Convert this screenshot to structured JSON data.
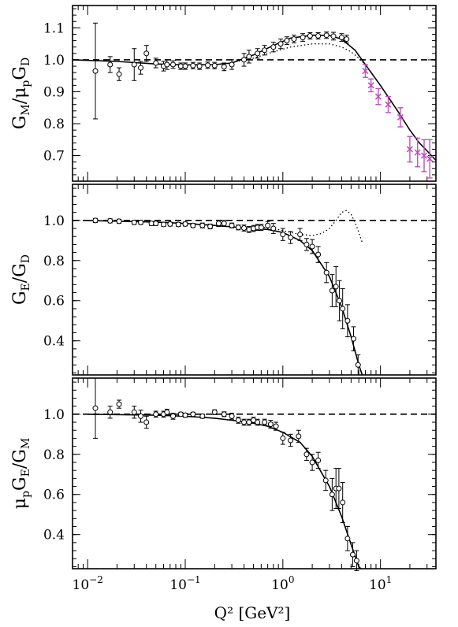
{
  "chart_data": [
    {
      "type": "scatter",
      "panel": "top",
      "ylabel": "G_M/μ_pG_D",
      "ylim": [
        0.62,
        1.17
      ],
      "xlim": [
        0.007,
        37
      ],
      "xscale": "log",
      "yticks": [
        0.7,
        0.8,
        0.9,
        1.0,
        1.1
      ],
      "ytick_labels": [
        "0.7",
        "0.8",
        "0.9",
        "1.0",
        "1.1"
      ],
      "reference_line": 1.0,
      "fit_curve": [
        [
          0.007,
          1.0
        ],
        [
          0.02,
          0.995
        ],
        [
          0.05,
          0.987
        ],
        [
          0.1,
          0.984
        ],
        [
          0.2,
          0.985
        ],
        [
          0.3,
          0.99
        ],
        [
          0.5,
          1.015
        ],
        [
          0.8,
          1.045
        ],
        [
          1.2,
          1.068
        ],
        [
          2.0,
          1.077
        ],
        [
          3.0,
          1.076
        ],
        [
          4.0,
          1.065
        ],
        [
          5.5,
          1.03
        ],
        [
          7.0,
          0.985
        ],
        [
          10.0,
          0.92
        ],
        [
          15.0,
          0.84
        ],
        [
          20.0,
          0.78
        ],
        [
          25.0,
          0.74
        ],
        [
          30.0,
          0.715
        ],
        [
          37.0,
          0.685
        ]
      ],
      "dotted_curve": [
        [
          0.3,
          0.992
        ],
        [
          0.5,
          1.005
        ],
        [
          0.8,
          1.025
        ],
        [
          1.2,
          1.04
        ],
        [
          2.0,
          1.05
        ],
        [
          3.0,
          1.05
        ],
        [
          4.0,
          1.04
        ],
        [
          5.0,
          1.025
        ],
        [
          6.0,
          1.005
        ],
        [
          7.0,
          0.985
        ]
      ],
      "points": [
        {
          "x": 0.012,
          "y": 0.965,
          "err": 0.15
        },
        {
          "x": 0.017,
          "y": 0.985,
          "err": 0.025
        },
        {
          "x": 0.021,
          "y": 0.955,
          "err": 0.02
        },
        {
          "x": 0.03,
          "y": 0.985,
          "err": 0.05
        },
        {
          "x": 0.035,
          "y": 0.975,
          "err": 0.02
        },
        {
          "x": 0.04,
          "y": 1.02,
          "err": 0.025
        },
        {
          "x": 0.05,
          "y": 0.99,
          "err": 0.015
        },
        {
          "x": 0.06,
          "y": 0.98,
          "err": 0.015
        },
        {
          "x": 0.065,
          "y": 0.985,
          "err": 0.015
        },
        {
          "x": 0.075,
          "y": 0.985,
          "err": 0.012
        },
        {
          "x": 0.09,
          "y": 0.98,
          "err": 0.01
        },
        {
          "x": 0.1,
          "y": 0.98,
          "err": 0.01
        },
        {
          "x": 0.12,
          "y": 0.982,
          "err": 0.01
        },
        {
          "x": 0.14,
          "y": 0.98,
          "err": 0.01
        },
        {
          "x": 0.17,
          "y": 0.983,
          "err": 0.01
        },
        {
          "x": 0.2,
          "y": 0.982,
          "err": 0.01
        },
        {
          "x": 0.25,
          "y": 0.978,
          "err": 0.012
        },
        {
          "x": 0.3,
          "y": 0.985,
          "err": 0.015
        },
        {
          "x": 0.4,
          "y": 1.0,
          "err": 0.02
        },
        {
          "x": 0.45,
          "y": 1.01,
          "err": 0.02
        },
        {
          "x": 0.55,
          "y": 1.02,
          "err": 0.015
        },
        {
          "x": 0.65,
          "y": 1.03,
          "err": 0.015
        },
        {
          "x": 0.8,
          "y": 1.04,
          "err": 0.015
        },
        {
          "x": 0.95,
          "y": 1.05,
          "err": 0.015
        },
        {
          "x": 1.1,
          "y": 1.06,
          "err": 0.012
        },
        {
          "x": 1.3,
          "y": 1.065,
          "err": 0.012
        },
        {
          "x": 1.6,
          "y": 1.07,
          "err": 0.012
        },
        {
          "x": 1.9,
          "y": 1.075,
          "err": 0.01
        },
        {
          "x": 2.3,
          "y": 1.075,
          "err": 0.01
        },
        {
          "x": 2.8,
          "y": 1.077,
          "err": 0.01
        },
        {
          "x": 3.3,
          "y": 1.074,
          "err": 0.012
        },
        {
          "x": 4.0,
          "y": 1.07,
          "err": 0.012
        },
        {
          "x": 4.5,
          "y": 1.065,
          "err": 0.012
        }
      ],
      "points_highlight": [
        {
          "x": 7.0,
          "y": 0.965,
          "err": 0.02
        },
        {
          "x": 8.0,
          "y": 0.92,
          "err": 0.02
        },
        {
          "x": 9.5,
          "y": 0.885,
          "err": 0.025
        },
        {
          "x": 12.0,
          "y": 0.86,
          "err": 0.025
        },
        {
          "x": 16.0,
          "y": 0.82,
          "err": 0.03
        },
        {
          "x": 20.0,
          "y": 0.72,
          "err": 0.04
        },
        {
          "x": 24.0,
          "y": 0.71,
          "err": 0.045
        },
        {
          "x": 28.0,
          "y": 0.7,
          "err": 0.05
        },
        {
          "x": 32.0,
          "y": 0.69,
          "err": 0.06
        }
      ]
    },
    {
      "type": "scatter",
      "panel": "middle",
      "ylabel": "G_E/G_D",
      "ylim": [
        0.23,
        1.18
      ],
      "xlim": [
        0.007,
        37
      ],
      "xscale": "log",
      "yticks": [
        0.4,
        0.6,
        0.8,
        1.0
      ],
      "ytick_labels": [
        "0.4",
        "0.6",
        "0.8",
        "1.0"
      ],
      "reference_line": 1.0,
      "fit_curve": [
        [
          0.01,
          1.0
        ],
        [
          0.05,
          0.992
        ],
        [
          0.1,
          0.985
        ],
        [
          0.2,
          0.975
        ],
        [
          0.3,
          0.968
        ],
        [
          0.5,
          0.96
        ],
        [
          0.7,
          0.955
        ],
        [
          1.0,
          0.94
        ],
        [
          1.5,
          0.9
        ],
        [
          2.0,
          0.85
        ],
        [
          3.0,
          0.72
        ],
        [
          4.0,
          0.57
        ],
        [
          5.0,
          0.42
        ],
        [
          6.0,
          0.28
        ],
        [
          6.5,
          0.23
        ]
      ],
      "dotted_curve": [
        [
          0.5,
          0.97
        ],
        [
          0.8,
          0.96
        ],
        [
          1.2,
          0.94
        ],
        [
          1.5,
          0.93
        ],
        [
          2.0,
          0.925
        ],
        [
          2.5,
          0.935
        ],
        [
          3.0,
          0.96
        ],
        [
          3.5,
          1.0
        ],
        [
          4.0,
          1.04
        ],
        [
          4.5,
          1.05
        ],
        [
          5.0,
          1.03
        ],
        [
          5.5,
          0.99
        ],
        [
          6.0,
          0.94
        ],
        [
          6.5,
          0.89
        ]
      ],
      "points": [
        {
          "x": 0.012,
          "y": 1.0,
          "err": 0.01
        },
        {
          "x": 0.017,
          "y": 0.998,
          "err": 0.01
        },
        {
          "x": 0.021,
          "y": 0.996,
          "err": 0.01
        },
        {
          "x": 0.03,
          "y": 0.99,
          "err": 0.01
        },
        {
          "x": 0.035,
          "y": 0.99,
          "err": 0.01
        },
        {
          "x": 0.045,
          "y": 0.985,
          "err": 0.01
        },
        {
          "x": 0.05,
          "y": 0.985,
          "err": 0.01
        },
        {
          "x": 0.06,
          "y": 0.98,
          "err": 0.01
        },
        {
          "x": 0.07,
          "y": 0.982,
          "err": 0.01
        },
        {
          "x": 0.085,
          "y": 0.98,
          "err": 0.01
        },
        {
          "x": 0.1,
          "y": 0.982,
          "err": 0.01
        },
        {
          "x": 0.12,
          "y": 0.975,
          "err": 0.01
        },
        {
          "x": 0.15,
          "y": 0.975,
          "err": 0.012
        },
        {
          "x": 0.18,
          "y": 0.97,
          "err": 0.012
        },
        {
          "x": 0.22,
          "y": 0.985,
          "err": 0.015
        },
        {
          "x": 0.25,
          "y": 0.985,
          "err": 0.015
        },
        {
          "x": 0.3,
          "y": 0.975,
          "err": 0.012
        },
        {
          "x": 0.35,
          "y": 0.965,
          "err": 0.012
        },
        {
          "x": 0.4,
          "y": 0.962,
          "err": 0.015
        },
        {
          "x": 0.45,
          "y": 0.955,
          "err": 0.015
        },
        {
          "x": 0.5,
          "y": 0.96,
          "err": 0.015
        },
        {
          "x": 0.55,
          "y": 0.965,
          "err": 0.015
        },
        {
          "x": 0.6,
          "y": 0.965,
          "err": 0.015
        },
        {
          "x": 0.7,
          "y": 0.975,
          "err": 0.02
        },
        {
          "x": 0.8,
          "y": 0.96,
          "err": 0.025
        },
        {
          "x": 1.0,
          "y": 0.93,
          "err": 0.03
        },
        {
          "x": 1.2,
          "y": 0.915,
          "err": 0.03
        },
        {
          "x": 1.5,
          "y": 0.93,
          "err": 0.03
        },
        {
          "x": 1.75,
          "y": 0.88,
          "err": 0.03
        },
        {
          "x": 2.0,
          "y": 0.87,
          "err": 0.035
        },
        {
          "x": 2.3,
          "y": 0.83,
          "err": 0.04
        },
        {
          "x": 2.8,
          "y": 0.74,
          "err": 0.05
        },
        {
          "x": 3.2,
          "y": 0.65,
          "err": 0.08
        },
        {
          "x": 3.5,
          "y": 0.67,
          "err": 0.1
        },
        {
          "x": 3.8,
          "y": 0.6,
          "err": 0.1
        },
        {
          "x": 4.1,
          "y": 0.56,
          "err": 0.1
        },
        {
          "x": 4.6,
          "y": 0.5,
          "err": 0.08
        },
        {
          "x": 5.3,
          "y": 0.41,
          "err": 0.06
        },
        {
          "x": 5.9,
          "y": 0.28,
          "err": 0.05
        }
      ]
    },
    {
      "type": "scatter",
      "panel": "bottom",
      "ylabel": "μ_pG_E/G_M",
      "ylim": [
        0.23,
        1.18
      ],
      "xlim": [
        0.007,
        37
      ],
      "xscale": "log",
      "xlabel": "Q² [GeV²]",
      "xticks": [
        0.01,
        0.1,
        1,
        10
      ],
      "xtick_labels": [
        [
          "10",
          "−2"
        ],
        [
          "10",
          "−1"
        ],
        [
          "10",
          "0"
        ],
        [
          "10",
          "1"
        ]
      ],
      "yticks": [
        0.4,
        0.6,
        0.8,
        1.0
      ],
      "ytick_labels": [
        "0.4",
        "0.6",
        "0.8",
        "1.0"
      ],
      "reference_line": 1.0,
      "fit_curve": [
        [
          0.01,
          1.0
        ],
        [
          0.05,
          0.995
        ],
        [
          0.1,
          0.99
        ],
        [
          0.2,
          0.98
        ],
        [
          0.3,
          0.97
        ],
        [
          0.5,
          0.955
        ],
        [
          0.7,
          0.94
        ],
        [
          1.0,
          0.91
        ],
        [
          1.5,
          0.86
        ],
        [
          2.0,
          0.79
        ],
        [
          3.0,
          0.64
        ],
        [
          4.0,
          0.49
        ],
        [
          5.0,
          0.35
        ],
        [
          6.0,
          0.24
        ],
        [
          6.3,
          0.23
        ]
      ],
      "points": [
        {
          "x": 0.012,
          "y": 1.03,
          "err": 0.15
        },
        {
          "x": 0.017,
          "y": 1.01,
          "err": 0.03
        },
        {
          "x": 0.021,
          "y": 1.05,
          "err": 0.02
        },
        {
          "x": 0.03,
          "y": 1.01,
          "err": 0.03
        },
        {
          "x": 0.035,
          "y": 0.99,
          "err": 0.03
        },
        {
          "x": 0.04,
          "y": 0.96,
          "err": 0.03
        },
        {
          "x": 0.05,
          "y": 1.0,
          "err": 0.015
        },
        {
          "x": 0.06,
          "y": 1.0,
          "err": 0.015
        },
        {
          "x": 0.065,
          "y": 1.01,
          "err": 0.015
        },
        {
          "x": 0.075,
          "y": 0.99,
          "err": 0.015
        },
        {
          "x": 0.09,
          "y": 1.0,
          "err": 0.01
        },
        {
          "x": 0.1,
          "y": 0.995,
          "err": 0.01
        },
        {
          "x": 0.12,
          "y": 1.0,
          "err": 0.01
        },
        {
          "x": 0.15,
          "y": 0.99,
          "err": 0.01
        },
        {
          "x": 0.2,
          "y": 1.01,
          "err": 0.012
        },
        {
          "x": 0.25,
          "y": 1.0,
          "err": 0.012
        },
        {
          "x": 0.3,
          "y": 0.99,
          "err": 0.015
        },
        {
          "x": 0.35,
          "y": 0.97,
          "err": 0.015
        },
        {
          "x": 0.4,
          "y": 0.96,
          "err": 0.015
        },
        {
          "x": 0.45,
          "y": 0.96,
          "err": 0.015
        },
        {
          "x": 0.5,
          "y": 0.97,
          "err": 0.015
        },
        {
          "x": 0.55,
          "y": 0.96,
          "err": 0.015
        },
        {
          "x": 0.65,
          "y": 0.96,
          "err": 0.015
        },
        {
          "x": 0.75,
          "y": 0.95,
          "err": 0.02
        },
        {
          "x": 0.85,
          "y": 0.94,
          "err": 0.02
        },
        {
          "x": 1.0,
          "y": 0.88,
          "err": 0.03
        },
        {
          "x": 1.2,
          "y": 0.87,
          "err": 0.03
        },
        {
          "x": 1.45,
          "y": 0.89,
          "err": 0.03
        },
        {
          "x": 1.75,
          "y": 0.8,
          "err": 0.03
        },
        {
          "x": 2.0,
          "y": 0.76,
          "err": 0.04
        },
        {
          "x": 2.3,
          "y": 0.77,
          "err": 0.04
        },
        {
          "x": 2.75,
          "y": 0.67,
          "err": 0.05
        },
        {
          "x": 3.2,
          "y": 0.6,
          "err": 0.08
        },
        {
          "x": 3.5,
          "y": 0.63,
          "err": 0.1
        },
        {
          "x": 3.75,
          "y": 0.63,
          "err": 0.1
        },
        {
          "x": 4.1,
          "y": 0.56,
          "err": 0.1
        },
        {
          "x": 4.6,
          "y": 0.38,
          "err": 0.06
        },
        {
          "x": 5.2,
          "y": 0.3,
          "err": 0.06
        },
        {
          "x": 5.7,
          "y": 0.27,
          "err": 0.05
        }
      ]
    }
  ],
  "colors": {
    "highlight": "#c050c0",
    "ink": "#000000"
  }
}
